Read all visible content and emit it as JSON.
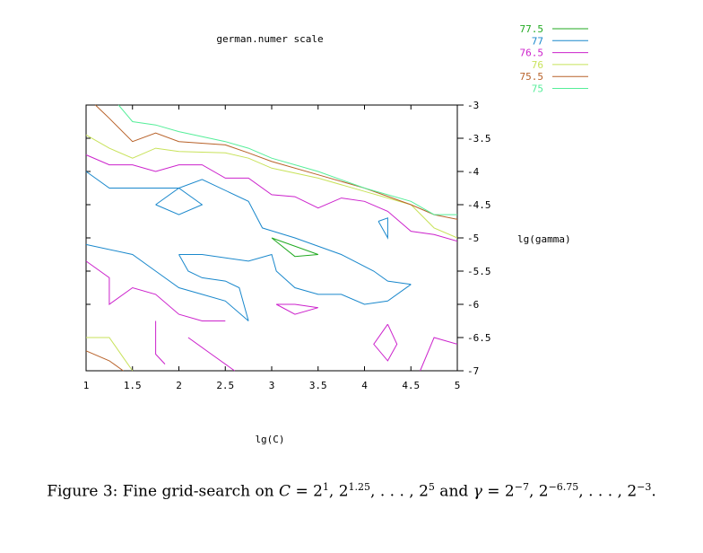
{
  "chart_data": {
    "type": "contour",
    "title": "german.numer scale",
    "xlabel": "lg(C)",
    "ylabel": "lg(gamma)",
    "xlim": [
      1,
      5
    ],
    "ylim": [
      -7,
      -3
    ],
    "x_ticks": [
      "1",
      "1.5",
      "2",
      "2.5",
      "3",
      "3.5",
      "4",
      "4.5",
      "5"
    ],
    "y_ticks": [
      "-3",
      "-3.5",
      "-4",
      "-4.5",
      "-5",
      "-5.5",
      "-6",
      "-6.5",
      "-7"
    ],
    "legend_position": "top-right",
    "series": [
      {
        "name": "77.5",
        "color": "#22aa22",
        "segments": [
          [
            [
              3.0,
              -5.0
            ],
            [
              3.25,
              -5.28
            ],
            [
              3.5,
              -5.25
            ],
            [
              3.0,
              -5.0
            ]
          ]
        ]
      },
      {
        "name": "77",
        "color": "#1a88cc",
        "segments": [
          [
            [
              1.0,
              -4.0
            ],
            [
              1.25,
              -4.25
            ],
            [
              1.75,
              -4.25
            ],
            [
              2.0,
              -4.25
            ],
            [
              2.25,
              -4.12
            ],
            [
              2.75,
              -4.45
            ],
            [
              2.9,
              -4.85
            ],
            [
              3.25,
              -5.0
            ],
            [
              3.75,
              -5.25
            ],
            [
              4.1,
              -5.5
            ],
            [
              4.25,
              -5.65
            ],
            [
              4.5,
              -5.7
            ]
          ],
          [
            [
              1.0,
              -5.1
            ],
            [
              1.5,
              -5.25
            ],
            [
              1.75,
              -5.5
            ],
            [
              2.0,
              -5.75
            ],
            [
              2.25,
              -5.85
            ],
            [
              2.5,
              -5.95
            ],
            [
              2.75,
              -6.25
            ]
          ],
          [
            [
              2.0,
              -5.25
            ],
            [
              2.25,
              -5.25
            ],
            [
              2.75,
              -5.35
            ],
            [
              3.0,
              -5.25
            ],
            [
              3.05,
              -5.5
            ],
            [
              3.25,
              -5.75
            ],
            [
              3.5,
              -5.85
            ],
            [
              3.75,
              -5.85
            ],
            [
              4.0,
              -6.0
            ],
            [
              4.25,
              -5.95
            ],
            [
              4.5,
              -5.7
            ]
          ],
          [
            [
              2.0,
              -5.25
            ],
            [
              2.1,
              -5.5
            ],
            [
              2.25,
              -5.6
            ],
            [
              2.5,
              -5.65
            ],
            [
              2.65,
              -5.75
            ],
            [
              2.75,
              -6.25
            ]
          ],
          [
            [
              1.75,
              -4.5
            ],
            [
              2.0,
              -4.25
            ],
            [
              2.25,
              -4.5
            ],
            [
              2.0,
              -4.65
            ],
            [
              1.75,
              -4.5
            ]
          ],
          [
            [
              4.15,
              -4.75
            ],
            [
              4.25,
              -4.7
            ],
            [
              4.25,
              -5.0
            ],
            [
              4.15,
              -4.75
            ]
          ]
        ]
      },
      {
        "name": "76.5",
        "color": "#cc22cc",
        "segments": [
          [
            [
              1.0,
              -3.75
            ],
            [
              1.25,
              -3.9
            ],
            [
              1.5,
              -3.9
            ],
            [
              1.75,
              -4.0
            ],
            [
              2.0,
              -3.9
            ],
            [
              2.25,
              -3.9
            ],
            [
              2.5,
              -4.1
            ],
            [
              2.75,
              -4.1
            ],
            [
              3.0,
              -4.35
            ],
            [
              3.25,
              -4.38
            ],
            [
              3.5,
              -4.55
            ],
            [
              3.75,
              -4.4
            ],
            [
              4.0,
              -4.45
            ],
            [
              4.25,
              -4.6
            ],
            [
              4.5,
              -4.9
            ],
            [
              4.75,
              -4.95
            ],
            [
              5.0,
              -5.05
            ]
          ],
          [
            [
              1.0,
              -5.35
            ],
            [
              1.25,
              -5.6
            ],
            [
              1.25,
              -6.0
            ],
            [
              1.5,
              -5.75
            ],
            [
              1.75,
              -5.85
            ],
            [
              2.0,
              -6.15
            ],
            [
              2.25,
              -6.25
            ],
            [
              2.5,
              -6.25
            ]
          ],
          [
            [
              1.75,
              -6.25
            ],
            [
              1.75,
              -6.75
            ],
            [
              1.85,
              -6.9
            ]
          ],
          [
            [
              2.1,
              -6.5
            ],
            [
              2.35,
              -6.75
            ],
            [
              2.6,
              -7.0
            ]
          ],
          [
            [
              4.25,
              -6.3
            ],
            [
              4.35,
              -6.6
            ],
            [
              4.25,
              -6.85
            ],
            [
              4.1,
              -6.6
            ],
            [
              4.25,
              -6.3
            ]
          ],
          [
            [
              3.25,
              -6.0
            ],
            [
              3.5,
              -6.05
            ],
            [
              3.25,
              -6.15
            ],
            [
              3.05,
              -6.0
            ],
            [
              3.25,
              -6.0
            ]
          ],
          [
            [
              4.6,
              -7.0
            ],
            [
              4.75,
              -6.5
            ],
            [
              5.0,
              -6.6
            ]
          ]
        ]
      },
      {
        "name": "76",
        "color": "#c8e25a",
        "segments": [
          [
            [
              1.0,
              -3.45
            ],
            [
              1.25,
              -3.65
            ],
            [
              1.5,
              -3.8
            ],
            [
              1.75,
              -3.65
            ],
            [
              2.0,
              -3.7
            ],
            [
              2.5,
              -3.72
            ],
            [
              2.75,
              -3.8
            ],
            [
              3.0,
              -3.95
            ],
            [
              3.5,
              -4.1
            ],
            [
              4.0,
              -4.3
            ],
            [
              4.5,
              -4.5
            ],
            [
              4.75,
              -4.85
            ],
            [
              5.0,
              -5.0
            ]
          ],
          [
            [
              1.0,
              -6.5
            ],
            [
              1.25,
              -6.5
            ],
            [
              1.4,
              -6.8
            ],
            [
              1.5,
              -7.0
            ]
          ]
        ]
      },
      {
        "name": "75.5",
        "color": "#b8622a",
        "segments": [
          [
            [
              1.1,
              -3.0
            ],
            [
              1.25,
              -3.2
            ],
            [
              1.5,
              -3.55
            ],
            [
              1.75,
              -3.42
            ],
            [
              2.0,
              -3.55
            ],
            [
              2.5,
              -3.6
            ],
            [
              2.75,
              -3.72
            ],
            [
              3.0,
              -3.85
            ],
            [
              3.5,
              -4.05
            ],
            [
              4.0,
              -4.25
            ],
            [
              4.5,
              -4.5
            ],
            [
              4.75,
              -4.65
            ],
            [
              5.0,
              -4.72
            ]
          ],
          [
            [
              1.0,
              -6.7
            ],
            [
              1.25,
              -6.85
            ],
            [
              1.4,
              -7.0
            ]
          ]
        ]
      },
      {
        "name": "75",
        "color": "#55ee99",
        "segments": [
          [
            [
              1.35,
              -3.0
            ],
            [
              1.5,
              -3.25
            ],
            [
              1.75,
              -3.3
            ],
            [
              2.0,
              -3.4
            ],
            [
              2.5,
              -3.55
            ],
            [
              2.75,
              -3.65
            ],
            [
              3.0,
              -3.8
            ],
            [
              3.5,
              -4.0
            ],
            [
              4.0,
              -4.25
            ],
            [
              4.5,
              -4.45
            ],
            [
              4.75,
              -4.65
            ],
            [
              5.0,
              -4.65
            ]
          ]
        ]
      }
    ]
  },
  "caption": {
    "prefix": "Figure 3: Fine grid-search on ",
    "c_var": "C",
    "c_eq": " = 2",
    "c_e1": "1",
    "c_mid": ", 2",
    "c_e2": "1.25",
    "c_dots": ", . . . , 2",
    "c_e3": "5",
    "and": " and ",
    "g_var": "γ",
    "g_eq": " = 2",
    "g_e1": "−7",
    "g_mid": ", 2",
    "g_e2": "−6.75",
    "g_dots": ", . . . , 2",
    "g_e3": "−3",
    "end": "."
  }
}
